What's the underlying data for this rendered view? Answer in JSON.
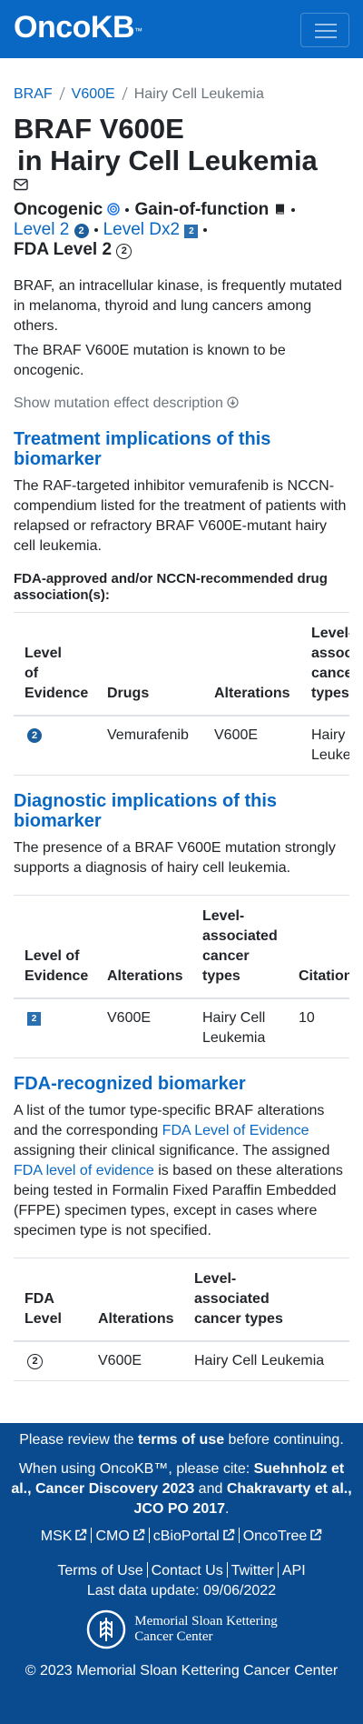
{
  "navbar": {
    "brand": "OncoKB",
    "trademark": "™"
  },
  "breadcrumb": [
    "BRAF",
    "V600E",
    "Hairy Cell Leukemia"
  ],
  "title": {
    "line1": "BRAF V600E",
    "line2": "in Hairy Cell Leukemia"
  },
  "annotations": {
    "oncogenicity": "Oncogenic",
    "mutation_effect": "Gain-of-function",
    "levels": [
      {
        "label": "Level 2",
        "icon": "2"
      },
      {
        "label": "Level Dx2",
        "icon": "2"
      }
    ],
    "fda_level": {
      "label": "FDA Level 2",
      "icon": "2"
    }
  },
  "summary": [
    "BRAF, an intracellular kinase, is frequently mutated in melanoma, thyroid and lung cancers among others.",
    "The BRAF V600E mutation is known to be oncogenic."
  ],
  "toggle": "Show mutation effect description",
  "sections": [
    {
      "heading": "Treatment implications of this biomarker",
      "description": [
        "The RAF-targeted inhibitor vemurafenib is NCCN-compendium listed for the treatment of patients with relapsed or refractory BRAF V600E-mutant hairy cell leukemia."
      ],
      "subheading": "FDA-approved and/or NCCN-recommended drug association(s):",
      "table": {
        "headers": [
          "Level of Evidence",
          "Drugs",
          "Alterations",
          "Level-associated cancer types"
        ],
        "rows": [
          [
            "2",
            "Vemurafenib",
            "V600E",
            "Hairy Cell Leukemia"
          ]
        ]
      }
    },
    {
      "heading": "Diagnostic implications of this biomarker",
      "description": [
        "The presence of a BRAF V600E mutation strongly supports a diagnosis of hairy cell leukemia."
      ],
      "table": {
        "headers": [
          "Level of Evidence",
          "Alterations",
          "Level-associated cancer types",
          "Citations"
        ],
        "rows": [
          [
            "2",
            "V600E",
            "Hairy Cell Leukemia",
            "10"
          ]
        ]
      }
    },
    {
      "heading": "FDA-recognized biomarker",
      "description": [
        "A list of the tumor type-specific BRAF alterations and the corresponding ",
        "FDA Level of Evidence",
        " assigning their clinical significance. The assigned ",
        "FDA level of evidence",
        " is based on these alterations being tested in Formalin Fixed Paraffin Embedded (FFPE) specimen types, except in cases where specimen type is not specified."
      ],
      "table": {
        "headers": [
          "FDA Level",
          "Alterations",
          "Level-associated cancer types"
        ],
        "rows": [
          [
            "2",
            "V600E",
            "Hairy Cell Leukemia"
          ]
        ]
      }
    }
  ],
  "footer": {
    "terms_notice": [
      "Please review the ",
      "terms of use",
      " before continuing."
    ],
    "citation": [
      "When using OncoKB™, please cite: ",
      "Suehnholz et al., Cancer Discovery 2023",
      " and ",
      "Chakravarty et al., JCO PO 2017",
      "."
    ],
    "external_links": [
      "MSK",
      "CMO",
      "cBioPortal",
      "OncoTree"
    ],
    "links": [
      "Terms of Use",
      "Contact Us",
      "Twitter",
      "API"
    ],
    "last_update": "Last data update: 09/06/2022",
    "logo": [
      "Memorial Sloan Kettering",
      "Cancer Center"
    ],
    "copyright": "© 2023 Memorial Sloan Kettering Cancer Center"
  }
}
